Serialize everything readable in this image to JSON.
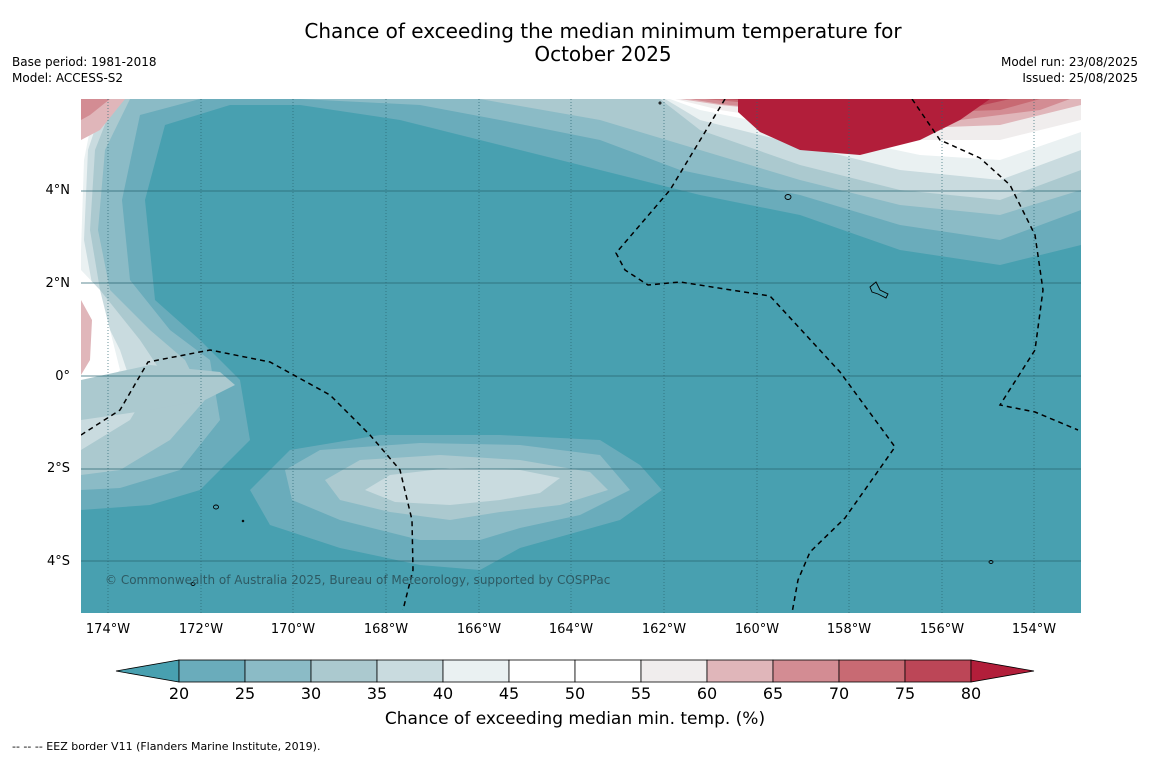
{
  "title_line1": "Chance of exceeding the median minimum temperature for",
  "title_line2": "October 2025",
  "base_period": "Base period: 1981-2018",
  "model": "Model: ACCESS-S2",
  "model_run": "Model run: 23/08/2025",
  "issued": "Issued: 25/08/2025",
  "copyright": "© Commonwealth of Australia 2025, Bureau of Meteorology, supported by COSPPac",
  "map": {
    "lon_range": [
      -174.6,
      -153.0
    ],
    "lat_range": [
      -5.2,
      5.9
    ],
    "lat_ticks": [
      "4°N",
      "2°N",
      "0°",
      "2°S",
      "4°S"
    ],
    "lon_ticks": [
      "174°W",
      "172°W",
      "170°W",
      "168°W",
      "166°W",
      "164°W",
      "162°W",
      "160°W",
      "158°W",
      "156°W",
      "154°W"
    ]
  },
  "colorbar": {
    "title": "Chance of exceeding median min. temp. (%)",
    "labels": [
      "20",
      "25",
      "30",
      "35",
      "40",
      "45",
      "50",
      "55",
      "60",
      "65",
      "70",
      "75",
      "80"
    ],
    "colors": [
      "#48a0b0",
      "#6aacbb",
      "#8bbbc6",
      "#abc9cf",
      "#c9dbdf",
      "#eaf1f2",
      "#ffffff",
      "#ffffff",
      "#f0eded",
      "#e0b6ba",
      "#d38c93",
      "#c86a73",
      "#bc4657",
      "#b21e3a"
    ],
    "extend": "both"
  },
  "footer": "-- -- -- EEZ border V11 (Flanders Marine Institute, 2019)."
}
